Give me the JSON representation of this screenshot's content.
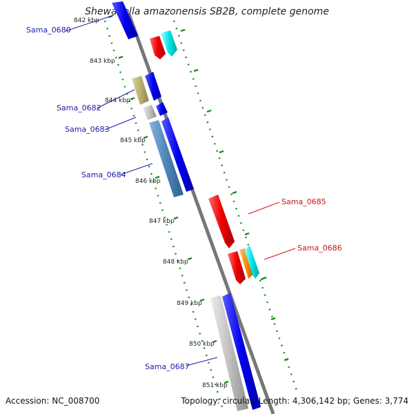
{
  "title": "Shewanella amazonensis SB2B, complete genome",
  "accession_text": "Accession: NC_008700",
  "topology_text": "Topology: circular; Length: 4,306,142 bp; Genes: 3,774",
  "colors": {
    "backbone": "#777777",
    "tick": "#1f8a1f",
    "label_blue": "#1a1aa6",
    "label_red": "#cc1111",
    "gene_blue": "#0000ee",
    "gene_red": "#ee0000",
    "gene_cyan": "#00e5e5",
    "gene_orange": "#ff8c00",
    "gene_olive": "#b8b070",
    "gene_steel": "#4f86b8",
    "gene_gray": "#c0c0c0"
  },
  "scale": {
    "ticks": [
      "842 kbp",
      "843 kbp",
      "844 kbp",
      "845 kbp",
      "846 kbp",
      "847 kbp",
      "848 kbp",
      "849 kbp",
      "850 kbp",
      "851 kbp"
    ]
  },
  "labels": {
    "sama_0680": "Sama_0680",
    "sama_0682": "Sama_0682",
    "sama_0683": "Sama_0683",
    "sama_0684": "Sama_0684",
    "sama_0685": "Sama_0685",
    "sama_0686": "Sama_0686",
    "sama_0687": "Sama_0687"
  }
}
